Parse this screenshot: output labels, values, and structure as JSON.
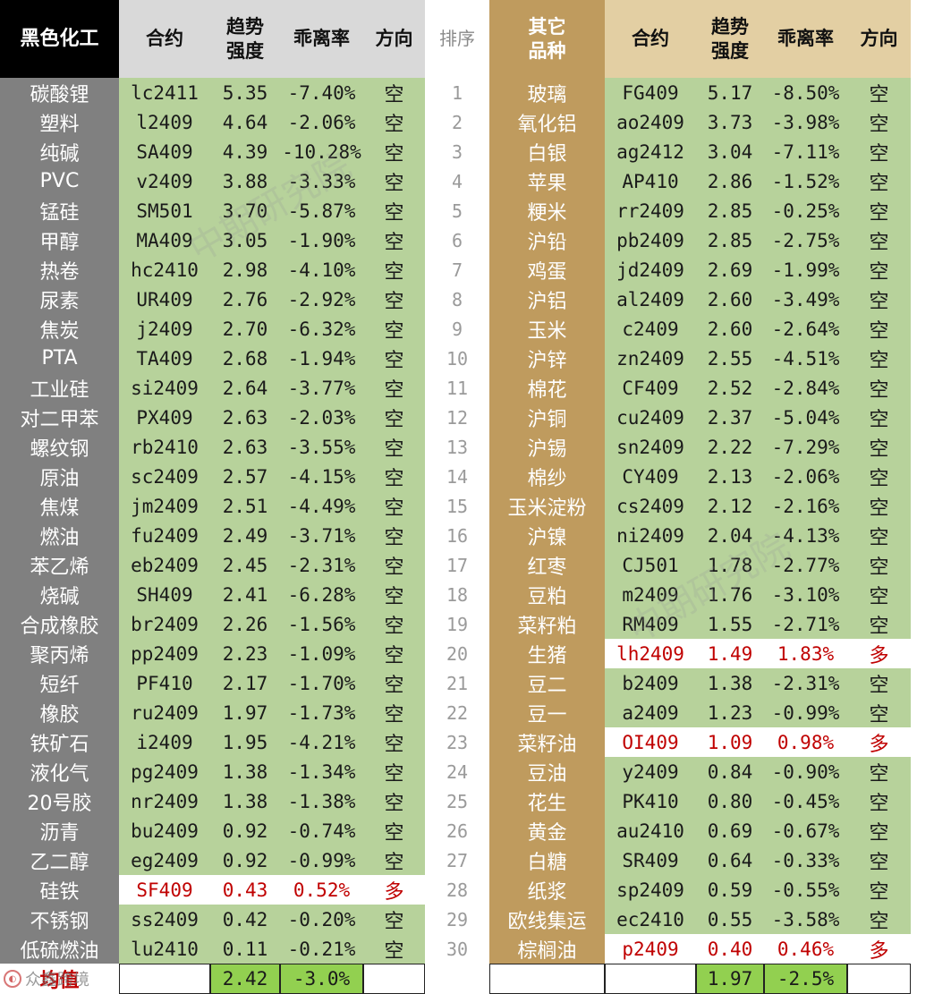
{
  "headers": {
    "left_category": "黑色化工",
    "contract": "合约",
    "trend_line1": "趋势",
    "trend_line2": "强度",
    "deviation": "乖离率",
    "direction": "方向",
    "rank": "排序",
    "right_category_line1": "其它",
    "right_category_line2": "品种"
  },
  "left_rows": [
    {
      "name": "碳酸锂",
      "contract": "lc2411",
      "trend": "5.35",
      "deviation": "-7.40%",
      "direction": "空",
      "highlight": false
    },
    {
      "name": "塑料",
      "contract": "l2409",
      "trend": "4.64",
      "deviation": "-2.06%",
      "direction": "空",
      "highlight": false
    },
    {
      "name": "纯碱",
      "contract": "SA409",
      "trend": "4.39",
      "deviation": "-10.28%",
      "direction": "空",
      "highlight": false
    },
    {
      "name": "PVC",
      "contract": "v2409",
      "trend": "3.88",
      "deviation": "-3.33%",
      "direction": "空",
      "highlight": false
    },
    {
      "name": "锰硅",
      "contract": "SM501",
      "trend": "3.70",
      "deviation": "-5.87%",
      "direction": "空",
      "highlight": false
    },
    {
      "name": "甲醇",
      "contract": "MA409",
      "trend": "3.05",
      "deviation": "-1.90%",
      "direction": "空",
      "highlight": false
    },
    {
      "name": "热卷",
      "contract": "hc2410",
      "trend": "2.98",
      "deviation": "-4.10%",
      "direction": "空",
      "highlight": false
    },
    {
      "name": "尿素",
      "contract": "UR409",
      "trend": "2.76",
      "deviation": "-2.92%",
      "direction": "空",
      "highlight": false
    },
    {
      "name": "焦炭",
      "contract": "j2409",
      "trend": "2.70",
      "deviation": "-6.32%",
      "direction": "空",
      "highlight": false
    },
    {
      "name": "PTA",
      "contract": "TA409",
      "trend": "2.68",
      "deviation": "-1.94%",
      "direction": "空",
      "highlight": false
    },
    {
      "name": "工业硅",
      "contract": "si2409",
      "trend": "2.64",
      "deviation": "-3.77%",
      "direction": "空",
      "highlight": false
    },
    {
      "name": "对二甲苯",
      "contract": "PX409",
      "trend": "2.63",
      "deviation": "-2.03%",
      "direction": "空",
      "highlight": false
    },
    {
      "name": "螺纹钢",
      "contract": "rb2410",
      "trend": "2.63",
      "deviation": "-3.55%",
      "direction": "空",
      "highlight": false
    },
    {
      "name": "原油",
      "contract": "sc2409",
      "trend": "2.57",
      "deviation": "-4.15%",
      "direction": "空",
      "highlight": false
    },
    {
      "name": "焦煤",
      "contract": "jm2409",
      "trend": "2.51",
      "deviation": "-4.49%",
      "direction": "空",
      "highlight": false
    },
    {
      "name": "燃油",
      "contract": "fu2409",
      "trend": "2.49",
      "deviation": "-3.71%",
      "direction": "空",
      "highlight": false
    },
    {
      "name": "苯乙烯",
      "contract": "eb2409",
      "trend": "2.45",
      "deviation": "-2.31%",
      "direction": "空",
      "highlight": false
    },
    {
      "name": "烧碱",
      "contract": "SH409",
      "trend": "2.41",
      "deviation": "-6.28%",
      "direction": "空",
      "highlight": false
    },
    {
      "name": "合成橡胶",
      "contract": "br2409",
      "trend": "2.26",
      "deviation": "-1.56%",
      "direction": "空",
      "highlight": false
    },
    {
      "name": "聚丙烯",
      "contract": "pp2409",
      "trend": "2.23",
      "deviation": "-1.09%",
      "direction": "空",
      "highlight": false
    },
    {
      "name": "短纤",
      "contract": "PF410",
      "trend": "2.17",
      "deviation": "-1.70%",
      "direction": "空",
      "highlight": false
    },
    {
      "name": "橡胶",
      "contract": "ru2409",
      "trend": "1.97",
      "deviation": "-1.73%",
      "direction": "空",
      "highlight": false
    },
    {
      "name": "铁矿石",
      "contract": "i2409",
      "trend": "1.95",
      "deviation": "-4.21%",
      "direction": "空",
      "highlight": false
    },
    {
      "name": "液化气",
      "contract": "pg2409",
      "trend": "1.38",
      "deviation": "-1.34%",
      "direction": "空",
      "highlight": false
    },
    {
      "name": "20号胶",
      "contract": "nr2409",
      "trend": "1.38",
      "deviation": "-1.38%",
      "direction": "空",
      "highlight": false
    },
    {
      "name": "沥青",
      "contract": "bu2409",
      "trend": "0.92",
      "deviation": "-0.74%",
      "direction": "空",
      "highlight": false
    },
    {
      "name": "乙二醇",
      "contract": "eg2409",
      "trend": "0.92",
      "deviation": "-0.99%",
      "direction": "空",
      "highlight": false
    },
    {
      "name": "硅铁",
      "contract": "SF409",
      "trend": "0.43",
      "deviation": "0.52%",
      "direction": "多",
      "highlight": true
    },
    {
      "name": "不锈钢",
      "contract": "ss2409",
      "trend": "0.42",
      "deviation": "-0.20%",
      "direction": "空",
      "highlight": false
    },
    {
      "name": "低硫燃油",
      "contract": "lu2410",
      "trend": "0.11",
      "deviation": "-0.21%",
      "direction": "空",
      "highlight": false
    }
  ],
  "right_rows": [
    {
      "name": "玻璃",
      "contract": "FG409",
      "trend": "5.17",
      "deviation": "-8.50%",
      "direction": "空",
      "highlight": false
    },
    {
      "name": "氧化铝",
      "contract": "ao2409",
      "trend": "3.73",
      "deviation": "-3.98%",
      "direction": "空",
      "highlight": false
    },
    {
      "name": "白银",
      "contract": "ag2412",
      "trend": "3.04",
      "deviation": "-7.11%",
      "direction": "空",
      "highlight": false
    },
    {
      "name": "苹果",
      "contract": "AP410",
      "trend": "2.86",
      "deviation": "-1.52%",
      "direction": "空",
      "highlight": false
    },
    {
      "name": "粳米",
      "contract": "rr2409",
      "trend": "2.85",
      "deviation": "-0.25%",
      "direction": "空",
      "highlight": false
    },
    {
      "name": "沪铅",
      "contract": "pb2409",
      "trend": "2.85",
      "deviation": "-2.75%",
      "direction": "空",
      "highlight": false
    },
    {
      "name": "鸡蛋",
      "contract": "jd2409",
      "trend": "2.69",
      "deviation": "-1.99%",
      "direction": "空",
      "highlight": false
    },
    {
      "name": "沪铝",
      "contract": "al2409",
      "trend": "2.60",
      "deviation": "-3.49%",
      "direction": "空",
      "highlight": false
    },
    {
      "name": "玉米",
      "contract": "c2409",
      "trend": "2.60",
      "deviation": "-2.64%",
      "direction": "空",
      "highlight": false
    },
    {
      "name": "沪锌",
      "contract": "zn2409",
      "trend": "2.55",
      "deviation": "-4.51%",
      "direction": "空",
      "highlight": false
    },
    {
      "name": "棉花",
      "contract": "CF409",
      "trend": "2.52",
      "deviation": "-2.84%",
      "direction": "空",
      "highlight": false
    },
    {
      "name": "沪铜",
      "contract": "cu2409",
      "trend": "2.37",
      "deviation": "-5.04%",
      "direction": "空",
      "highlight": false
    },
    {
      "name": "沪锡",
      "contract": "sn2409",
      "trend": "2.22",
      "deviation": "-7.29%",
      "direction": "空",
      "highlight": false
    },
    {
      "name": "棉纱",
      "contract": "CY409",
      "trend": "2.13",
      "deviation": "-2.06%",
      "direction": "空",
      "highlight": false
    },
    {
      "name": "玉米淀粉",
      "contract": "cs2409",
      "trend": "2.12",
      "deviation": "-2.16%",
      "direction": "空",
      "highlight": false
    },
    {
      "name": "沪镍",
      "contract": "ni2409",
      "trend": "2.04",
      "deviation": "-4.13%",
      "direction": "空",
      "highlight": false
    },
    {
      "name": "红枣",
      "contract": "CJ501",
      "trend": "1.78",
      "deviation": "-2.77%",
      "direction": "空",
      "highlight": false
    },
    {
      "name": "豆粕",
      "contract": "m2409",
      "trend": "1.76",
      "deviation": "-3.10%",
      "direction": "空",
      "highlight": false
    },
    {
      "name": "菜籽粕",
      "contract": "RM409",
      "trend": "1.55",
      "deviation": "-2.71%",
      "direction": "空",
      "highlight": false
    },
    {
      "name": "生猪",
      "contract": "lh2409",
      "trend": "1.49",
      "deviation": "1.83%",
      "direction": "多",
      "highlight": true
    },
    {
      "name": "豆二",
      "contract": "b2409",
      "trend": "1.38",
      "deviation": "-2.31%",
      "direction": "空",
      "highlight": false
    },
    {
      "name": "豆一",
      "contract": "a2409",
      "trend": "1.23",
      "deviation": "-0.99%",
      "direction": "空",
      "highlight": false
    },
    {
      "name": "菜籽油",
      "contract": "OI409",
      "trend": "1.09",
      "deviation": "0.98%",
      "direction": "多",
      "highlight": true
    },
    {
      "name": "豆油",
      "contract": "y2409",
      "trend": "0.84",
      "deviation": "-0.90%",
      "direction": "空",
      "highlight": false
    },
    {
      "name": "花生",
      "contract": "PK410",
      "trend": "0.80",
      "deviation": "-0.45%",
      "direction": "空",
      "highlight": false
    },
    {
      "name": "黄金",
      "contract": "au2410",
      "trend": "0.69",
      "deviation": "-0.67%",
      "direction": "空",
      "highlight": false
    },
    {
      "name": "白糖",
      "contract": "SR409",
      "trend": "0.64",
      "deviation": "-0.33%",
      "direction": "空",
      "highlight": false
    },
    {
      "name": "纸浆",
      "contract": "sp2409",
      "trend": "0.59",
      "deviation": "-0.55%",
      "direction": "空",
      "highlight": false
    },
    {
      "name": "欧线集运",
      "contract": "ec2410",
      "trend": "0.55",
      "deviation": "-3.58%",
      "direction": "空",
      "highlight": false
    },
    {
      "name": "棕榈油",
      "contract": "p2409",
      "trend": "0.40",
      "deviation": "0.46%",
      "direction": "多",
      "highlight": true
    }
  ],
  "ranks": [
    "1",
    "2",
    "3",
    "4",
    "5",
    "6",
    "7",
    "8",
    "9",
    "10",
    "11",
    "12",
    "13",
    "14",
    "15",
    "16",
    "17",
    "18",
    "19",
    "20",
    "21",
    "22",
    "23",
    "24",
    "25",
    "26",
    "27",
    "28",
    "29",
    "30"
  ],
  "footer": {
    "label": "均值",
    "left_trend_avg": "2.42",
    "left_deviation_avg": "-3.0%",
    "right_trend_avg": "1.97",
    "right_deviation_avg": "-2.5%"
  },
  "watermark_text": "中期研究院",
  "logo_text": "众鑫跨境",
  "colors": {
    "left_header": "#000000",
    "left_name_bg": "#808080",
    "right_name_bg": "#bf9b5e",
    "data_bg": "#b7d29b",
    "avg_bg": "#92d050",
    "long_text": "#c00000"
  }
}
